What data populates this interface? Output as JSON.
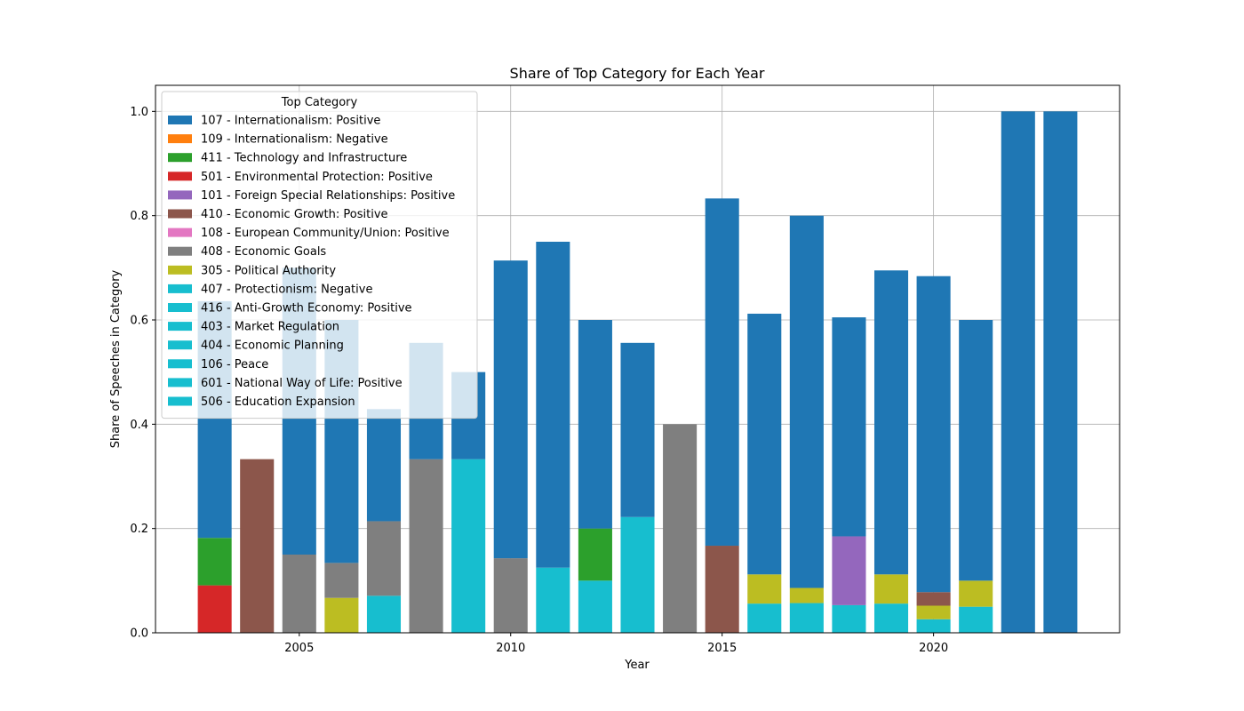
{
  "chart_data": {
    "type": "bar",
    "stacked": true,
    "title": "Share of Top Category for Each Year",
    "xlabel": "Year",
    "ylabel": "Share of Speeches in Category",
    "xlim": [
      2001.6,
      2024.4
    ],
    "ylim": [
      0,
      1.05
    ],
    "x_ticks": [
      2005,
      2010,
      2015,
      2020
    ],
    "y_ticks": [
      0.0,
      0.2,
      0.4,
      0.6,
      0.8,
      1.0
    ],
    "y_tick_labels": [
      "0.0",
      "0.2",
      "0.4",
      "0.6",
      "0.8",
      "1.0"
    ],
    "grid": true,
    "legend_position": "upper-left",
    "legend_title": "Top Category",
    "legend": [
      {
        "label": "107 - Internationalism: Positive",
        "color": "#1f77b4"
      },
      {
        "label": "109 - Internationalism: Negative",
        "color": "#ff7f0e"
      },
      {
        "label": "411 - Technology and Infrastructure",
        "color": "#2ca02c"
      },
      {
        "label": "501 - Environmental Protection: Positive",
        "color": "#d62728"
      },
      {
        "label": "101 - Foreign Special Relationships: Positive",
        "color": "#9467bd"
      },
      {
        "label": "410 - Economic Growth: Positive",
        "color": "#8c564b"
      },
      {
        "label": "108 - European Community/Union: Positive",
        "color": "#e377c2"
      },
      {
        "label": "408 - Economic Goals",
        "color": "#7f7f7f"
      },
      {
        "label": "305 - Political Authority",
        "color": "#bcbd22"
      },
      {
        "label": "407 - Protectionism: Negative",
        "color": "#17becf"
      },
      {
        "label": "416 - Anti-Growth Economy: Positive",
        "color": "#17becf"
      },
      {
        "label": "403 - Market Regulation",
        "color": "#17becf"
      },
      {
        "label": "404 - Economic Planning",
        "color": "#17becf"
      },
      {
        "label": "106 - Peace",
        "color": "#17becf"
      },
      {
        "label": "601 - National Way of Life: Positive",
        "color": "#17becf"
      },
      {
        "label": "506 - Education Expansion",
        "color": "#17becf"
      }
    ],
    "bars": [
      {
        "year": 2003,
        "segments": [
          {
            "value": 0.091,
            "color": "#d62728"
          },
          {
            "value": 0.091,
            "color": "#2ca02c"
          },
          {
            "value": 0.454,
            "color": "#1f77b4"
          }
        ]
      },
      {
        "year": 2004,
        "segments": [
          {
            "value": 0.333,
            "color": "#8c564b"
          }
        ]
      },
      {
        "year": 2005,
        "segments": [
          {
            "value": 0.15,
            "color": "#7f7f7f"
          },
          {
            "value": 0.55,
            "color": "#1f77b4"
          }
        ]
      },
      {
        "year": 2006,
        "segments": [
          {
            "value": 0.067,
            "color": "#bcbd22"
          },
          {
            "value": 0.067,
            "color": "#7f7f7f"
          },
          {
            "value": 0.466,
            "color": "#1f77b4"
          }
        ]
      },
      {
        "year": 2007,
        "segments": [
          {
            "value": 0.071,
            "color": "#17becf"
          },
          {
            "value": 0.143,
            "color": "#7f7f7f"
          },
          {
            "value": 0.215,
            "color": "#1f77b4"
          }
        ]
      },
      {
        "year": 2008,
        "segments": [
          {
            "value": 0.333,
            "color": "#7f7f7f"
          },
          {
            "value": 0.223,
            "color": "#1f77b4"
          }
        ]
      },
      {
        "year": 2009,
        "segments": [
          {
            "value": 0.333,
            "color": "#17becf"
          },
          {
            "value": 0.167,
            "color": "#1f77b4"
          }
        ]
      },
      {
        "year": 2010,
        "segments": [
          {
            "value": 0.143,
            "color": "#7f7f7f"
          },
          {
            "value": 0.571,
            "color": "#1f77b4"
          }
        ]
      },
      {
        "year": 2011,
        "segments": [
          {
            "value": 0.125,
            "color": "#17becf"
          },
          {
            "value": 0.625,
            "color": "#1f77b4"
          }
        ]
      },
      {
        "year": 2012,
        "segments": [
          {
            "value": 0.1,
            "color": "#17becf"
          },
          {
            "value": 0.1,
            "color": "#2ca02c"
          },
          {
            "value": 0.4,
            "color": "#1f77b4"
          }
        ]
      },
      {
        "year": 2013,
        "segments": [
          {
            "value": 0.222,
            "color": "#17becf"
          },
          {
            "value": 0.334,
            "color": "#1f77b4"
          }
        ]
      },
      {
        "year": 2014,
        "segments": [
          {
            "value": 0.4,
            "color": "#7f7f7f"
          }
        ]
      },
      {
        "year": 2015,
        "segments": [
          {
            "value": 0.167,
            "color": "#8c564b"
          },
          {
            "value": 0.666,
            "color": "#1f77b4"
          }
        ]
      },
      {
        "year": 2016,
        "segments": [
          {
            "value": 0.056,
            "color": "#17becf"
          },
          {
            "value": 0.056,
            "color": "#bcbd22"
          },
          {
            "value": 0.5,
            "color": "#1f77b4"
          }
        ]
      },
      {
        "year": 2017,
        "segments": [
          {
            "value": 0.057,
            "color": "#17becf"
          },
          {
            "value": 0.029,
            "color": "#bcbd22"
          },
          {
            "value": 0.714,
            "color": "#1f77b4"
          }
        ]
      },
      {
        "year": 2018,
        "segments": [
          {
            "value": 0.053,
            "color": "#17becf"
          },
          {
            "value": 0.132,
            "color": "#9467bd"
          },
          {
            "value": 0.42,
            "color": "#1f77b4"
          }
        ]
      },
      {
        "year": 2019,
        "segments": [
          {
            "value": 0.056,
            "color": "#17becf"
          },
          {
            "value": 0.056,
            "color": "#bcbd22"
          },
          {
            "value": 0.583,
            "color": "#1f77b4"
          }
        ]
      },
      {
        "year": 2020,
        "segments": [
          {
            "value": 0.026,
            "color": "#17becf"
          },
          {
            "value": 0.026,
            "color": "#bcbd22"
          },
          {
            "value": 0.026,
            "color": "#8c564b"
          },
          {
            "value": 0.606,
            "color": "#1f77b4"
          }
        ]
      },
      {
        "year": 2021,
        "segments": [
          {
            "value": 0.05,
            "color": "#17becf"
          },
          {
            "value": 0.05,
            "color": "#bcbd22"
          },
          {
            "value": 0.5,
            "color": "#1f77b4"
          }
        ]
      },
      {
        "year": 2022,
        "segments": [
          {
            "value": 1.0,
            "color": "#1f77b4"
          }
        ]
      },
      {
        "year": 2023,
        "segments": [
          {
            "value": 1.0,
            "color": "#1f77b4"
          }
        ]
      }
    ]
  }
}
